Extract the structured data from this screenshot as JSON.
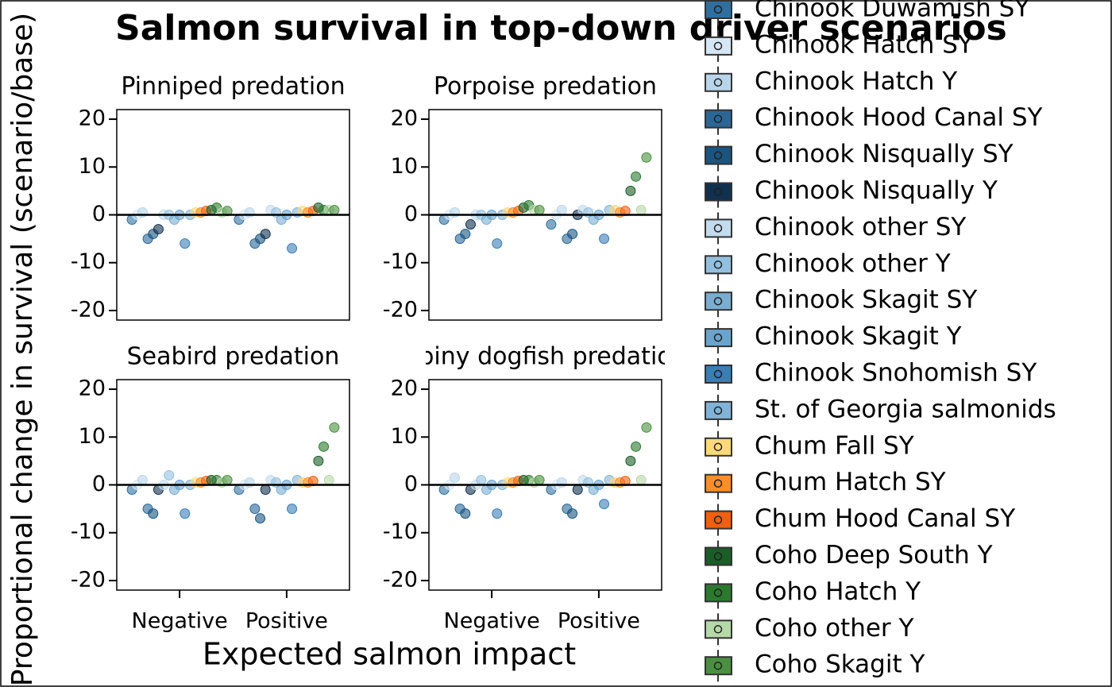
{
  "figure": {
    "title": "Salmon survival in top-down driver scenarios",
    "xlabel": "Expected salmon impact",
    "ylabel": "Proportional change in survival (scenario/base)"
  },
  "chart_data": [
    {
      "type": "strip",
      "title": "Pinniped predation",
      "categories": [
        "Negative",
        "Positive"
      ],
      "ylim": [
        -22,
        22
      ],
      "yticks": [
        -20,
        -10,
        0,
        10,
        20
      ],
      "series": [
        {
          "name": "Chinook Duwamish SY",
          "color": "#2f6fa0",
          "values": [
            -1,
            -1
          ]
        },
        {
          "name": "Chinook Hatch SY",
          "color": "#d6e6f4",
          "values": [
            0,
            0
          ]
        },
        {
          "name": "Chinook Hatch Y",
          "color": "#b8d5ea",
          "values": [
            0.5,
            0.5
          ]
        },
        {
          "name": "Chinook Hood Canal SY",
          "color": "#2a6797",
          "values": [
            -5,
            -6
          ]
        },
        {
          "name": "Chinook Nisqually SY",
          "color": "#1a5580",
          "values": [
            -4,
            -5
          ]
        },
        {
          "name": "Chinook Nisqually Y",
          "color": "#10304f",
          "values": [
            -3,
            -4
          ]
        },
        {
          "name": "Chinook other SY",
          "color": "#c2dbed",
          "values": [
            0,
            1
          ]
        },
        {
          "name": "Chinook other Y",
          "color": "#94c0df",
          "values": [
            0,
            0.5
          ]
        },
        {
          "name": "Chinook Skagit SY",
          "color": "#7aadd2",
          "values": [
            -1,
            -1
          ]
        },
        {
          "name": "Chinook Skagit Y",
          "color": "#6aa4ce",
          "values": [
            0,
            0
          ]
        },
        {
          "name": "Chinook Snohomish SY",
          "color": "#3b7db5",
          "values": [
            -6,
            -7
          ]
        },
        {
          "name": "St. of Georgia salmonids",
          "color": "#80b3d8",
          "values": [
            0,
            0.5
          ]
        },
        {
          "name": "Chum Fall SY",
          "color": "#fdd97a",
          "values": [
            0.5,
            0.8
          ]
        },
        {
          "name": "Chum Hatch SY",
          "color": "#f98e2b",
          "values": [
            0.5,
            0.5
          ]
        },
        {
          "name": "Chum Hood Canal SY",
          "color": "#f06010",
          "values": [
            0.8,
            0.8
          ]
        },
        {
          "name": "Coho Deep South Y",
          "color": "#1a5e27",
          "values": [
            1,
            1.5
          ]
        },
        {
          "name": "Coho Hatch Y",
          "color": "#2a7a2e",
          "values": [
            1.5,
            1
          ]
        },
        {
          "name": "Coho other Y",
          "color": "#b5d9a8",
          "values": [
            0.5,
            1
          ]
        },
        {
          "name": "Coho Skagit Y",
          "color": "#4a9040",
          "values": [
            0.8,
            1
          ]
        }
      ]
    },
    {
      "type": "strip",
      "title": "Porpoise predation",
      "categories": [
        "Negative",
        "Positive"
      ],
      "ylim": [
        -22,
        22
      ],
      "yticks": [
        -20,
        -10,
        0,
        10,
        20
      ],
      "series": [
        {
          "name": "Chinook Duwamish SY",
          "color": "#2f6fa0",
          "values": [
            -1,
            -2
          ]
        },
        {
          "name": "Chinook Hatch SY",
          "color": "#d6e6f4",
          "values": [
            0,
            0
          ]
        },
        {
          "name": "Chinook Hatch Y",
          "color": "#b8d5ea",
          "values": [
            0.5,
            1
          ]
        },
        {
          "name": "Chinook Hood Canal SY",
          "color": "#2a6797",
          "values": [
            -5,
            -5
          ]
        },
        {
          "name": "Chinook Nisqually SY",
          "color": "#1a5580",
          "values": [
            -4,
            -4
          ]
        },
        {
          "name": "Chinook Nisqually Y",
          "color": "#10304f",
          "values": [
            -2,
            0
          ]
        },
        {
          "name": "Chinook other SY",
          "color": "#c2dbed",
          "values": [
            0,
            1
          ]
        },
        {
          "name": "Chinook other Y",
          "color": "#94c0df",
          "values": [
            0,
            0.5
          ]
        },
        {
          "name": "Chinook Skagit SY",
          "color": "#7aadd2",
          "values": [
            -1,
            -1
          ]
        },
        {
          "name": "Chinook Skagit Y",
          "color": "#6aa4ce",
          "values": [
            0,
            0
          ]
        },
        {
          "name": "Chinook Snohomish SY",
          "color": "#3b7db5",
          "values": [
            -6,
            -5
          ]
        },
        {
          "name": "St. of Georgia salmonids",
          "color": "#80b3d8",
          "values": [
            0,
            1
          ]
        },
        {
          "name": "Chum Fall SY",
          "color": "#fdd97a",
          "values": [
            0.5,
            1
          ]
        },
        {
          "name": "Chum Hatch SY",
          "color": "#f98e2b",
          "values": [
            0.5,
            0.5
          ]
        },
        {
          "name": "Chum Hood Canal SY",
          "color": "#f06010",
          "values": [
            0.8,
            0.8
          ]
        },
        {
          "name": "Coho Deep South Y",
          "color": "#1a5e27",
          "values": [
            1.5,
            5
          ]
        },
        {
          "name": "Coho Hatch Y",
          "color": "#2a7a2e",
          "values": [
            2,
            8
          ]
        },
        {
          "name": "Coho other Y",
          "color": "#b5d9a8",
          "values": [
            1,
            1
          ]
        },
        {
          "name": "Coho Skagit Y",
          "color": "#4a9040",
          "values": [
            1,
            12
          ]
        }
      ]
    },
    {
      "type": "strip",
      "title": "Seabird predation",
      "categories": [
        "Negative",
        "Positive"
      ],
      "ylim": [
        -22,
        22
      ],
      "yticks": [
        -20,
        -10,
        0,
        10,
        20
      ],
      "series": [
        {
          "name": "Chinook Duwamish SY",
          "color": "#2f6fa0",
          "values": [
            -1,
            -1
          ]
        },
        {
          "name": "Chinook Hatch SY",
          "color": "#d6e6f4",
          "values": [
            0,
            0
          ]
        },
        {
          "name": "Chinook Hatch Y",
          "color": "#b8d5ea",
          "values": [
            1,
            0.5
          ]
        },
        {
          "name": "Chinook Hood Canal SY",
          "color": "#2a6797",
          "values": [
            -5,
            -5
          ]
        },
        {
          "name": "Chinook Nisqually SY",
          "color": "#1a5580",
          "values": [
            -6,
            -7
          ]
        },
        {
          "name": "Chinook Nisqually Y",
          "color": "#10304f",
          "values": [
            -1,
            -1
          ]
        },
        {
          "name": "Chinook other SY",
          "color": "#c2dbed",
          "values": [
            0,
            1
          ]
        },
        {
          "name": "Chinook other Y",
          "color": "#94c0df",
          "values": [
            2,
            0.5
          ]
        },
        {
          "name": "Chinook Skagit SY",
          "color": "#7aadd2",
          "values": [
            -1,
            -1
          ]
        },
        {
          "name": "Chinook Skagit Y",
          "color": "#6aa4ce",
          "values": [
            0,
            0
          ]
        },
        {
          "name": "Chinook Snohomish SY",
          "color": "#3b7db5",
          "values": [
            -6,
            -5
          ]
        },
        {
          "name": "St. of Georgia salmonids",
          "color": "#80b3d8",
          "values": [
            0,
            1
          ]
        },
        {
          "name": "Chum Fall SY",
          "color": "#fdd97a",
          "values": [
            0.5,
            0.5
          ]
        },
        {
          "name": "Chum Hatch SY",
          "color": "#f98e2b",
          "values": [
            0.5,
            0.5
          ]
        },
        {
          "name": "Chum Hood Canal SY",
          "color": "#f06010",
          "values": [
            0.8,
            0.8
          ]
        },
        {
          "name": "Coho Deep South Y",
          "color": "#1a5e27",
          "values": [
            1,
            5
          ]
        },
        {
          "name": "Coho Hatch Y",
          "color": "#2a7a2e",
          "values": [
            1,
            8
          ]
        },
        {
          "name": "Coho other Y",
          "color": "#b5d9a8",
          "values": [
            0.5,
            1
          ]
        },
        {
          "name": "Coho Skagit Y",
          "color": "#4a9040",
          "values": [
            1,
            12
          ]
        }
      ]
    },
    {
      "type": "strip",
      "title": "Spiny dogfish predation",
      "categories": [
        "Negative",
        "Positive"
      ],
      "ylim": [
        -22,
        22
      ],
      "yticks": [
        -20,
        -10,
        0,
        10,
        20
      ],
      "series": [
        {
          "name": "Chinook Duwamish SY",
          "color": "#2f6fa0",
          "values": [
            -1,
            -1
          ]
        },
        {
          "name": "Chinook Hatch SY",
          "color": "#d6e6f4",
          "values": [
            0,
            0
          ]
        },
        {
          "name": "Chinook Hatch Y",
          "color": "#b8d5ea",
          "values": [
            1.5,
            0.5
          ]
        },
        {
          "name": "Chinook Hood Canal SY",
          "color": "#2a6797",
          "values": [
            -5,
            -5
          ]
        },
        {
          "name": "Chinook Nisqually SY",
          "color": "#1a5580",
          "values": [
            -6,
            -6
          ]
        },
        {
          "name": "Chinook Nisqually Y",
          "color": "#10304f",
          "values": [
            -1,
            -1
          ]
        },
        {
          "name": "Chinook other SY",
          "color": "#c2dbed",
          "values": [
            0,
            1
          ]
        },
        {
          "name": "Chinook other Y",
          "color": "#94c0df",
          "values": [
            1,
            0.5
          ]
        },
        {
          "name": "Chinook Skagit SY",
          "color": "#7aadd2",
          "values": [
            -1,
            -1
          ]
        },
        {
          "name": "Chinook Skagit Y",
          "color": "#6aa4ce",
          "values": [
            0,
            0
          ]
        },
        {
          "name": "Chinook Snohomish SY",
          "color": "#3b7db5",
          "values": [
            -6,
            -4
          ]
        },
        {
          "name": "St. of Georgia salmonids",
          "color": "#80b3d8",
          "values": [
            0,
            1
          ]
        },
        {
          "name": "Chum Fall SY",
          "color": "#fdd97a",
          "values": [
            0.5,
            0.5
          ]
        },
        {
          "name": "Chum Hatch SY",
          "color": "#f98e2b",
          "values": [
            0.5,
            0.5
          ]
        },
        {
          "name": "Chum Hood Canal SY",
          "color": "#f06010",
          "values": [
            0.8,
            0.8
          ]
        },
        {
          "name": "Coho Deep South Y",
          "color": "#1a5e27",
          "values": [
            1,
            5
          ]
        },
        {
          "name": "Coho Hatch Y",
          "color": "#2a7a2e",
          "values": [
            1,
            8
          ]
        },
        {
          "name": "Coho other Y",
          "color": "#b5d9a8",
          "values": [
            0.5,
            1
          ]
        },
        {
          "name": "Coho Skagit Y",
          "color": "#4a9040",
          "values": [
            1,
            12
          ]
        }
      ]
    }
  ]
}
